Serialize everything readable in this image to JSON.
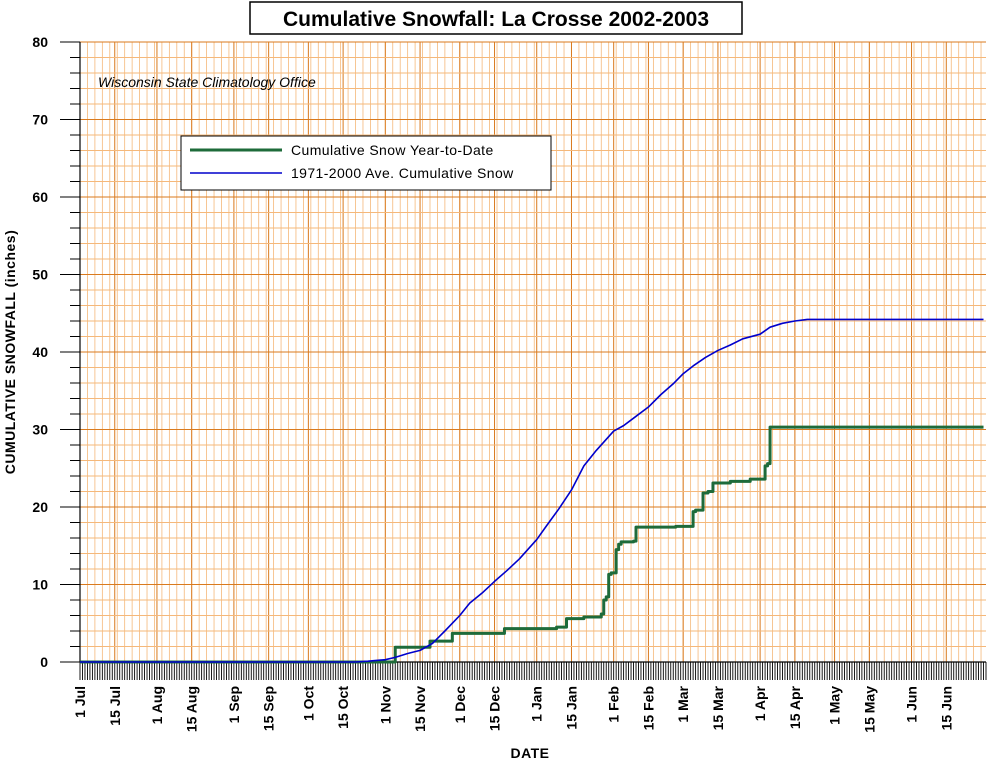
{
  "chart_data": {
    "type": "line",
    "title": "Cumulative Snowfall: La Crosse 2002-2003",
    "annotation": "Wisconsin State Climatology Office",
    "xlabel": "DATE",
    "ylabel": "CUMULATIVE SNOWFALL (inches)",
    "ylim": [
      0,
      80
    ],
    "y_ticks": [
      0,
      10,
      20,
      30,
      40,
      50,
      60,
      70,
      80
    ],
    "x_range": [
      "2002-07-01",
      "2003-06-30"
    ],
    "x_tick_labels": [
      {
        "date": "2002-07-01",
        "label": "1 Jul"
      },
      {
        "date": "2002-07-15",
        "label": "15 Jul"
      },
      {
        "date": "2002-08-01",
        "label": "1 Aug"
      },
      {
        "date": "2002-08-15",
        "label": "15 Aug"
      },
      {
        "date": "2002-09-01",
        "label": "1 Sep"
      },
      {
        "date": "2002-09-15",
        "label": "15 Sep"
      },
      {
        "date": "2002-10-01",
        "label": "1 Oct"
      },
      {
        "date": "2002-10-15",
        "label": "15 Oct"
      },
      {
        "date": "2002-11-01",
        "label": "1 Nov"
      },
      {
        "date": "2002-11-15",
        "label": "15 Nov"
      },
      {
        "date": "2002-12-01",
        "label": "1 Dec"
      },
      {
        "date": "2002-12-15",
        "label": "15 Dec"
      },
      {
        "date": "2003-01-01",
        "label": "1 Jan"
      },
      {
        "date": "2003-01-15",
        "label": "15 Jan"
      },
      {
        "date": "2003-02-01",
        "label": "1 Feb"
      },
      {
        "date": "2003-02-15",
        "label": "15 Feb"
      },
      {
        "date": "2003-03-01",
        "label": "1 Mar"
      },
      {
        "date": "2003-03-15",
        "label": "15 Mar"
      },
      {
        "date": "2003-04-01",
        "label": "1 Apr"
      },
      {
        "date": "2003-04-15",
        "label": "15 Apr"
      },
      {
        "date": "2003-05-01",
        "label": "1 May"
      },
      {
        "date": "2003-05-15",
        "label": "15 May"
      },
      {
        "date": "2003-06-01",
        "label": "1 Jun"
      },
      {
        "date": "2003-06-15",
        "label": "15 Jun"
      }
    ],
    "grid": true,
    "legend_position": "top-left",
    "series": [
      {
        "name": "Cumulative Snow Year-to-Date",
        "color": "#1e6b3a",
        "interpolation": "step",
        "points": [
          [
            "2002-07-01",
            0
          ],
          [
            "2002-11-04",
            0
          ],
          [
            "2002-11-05",
            1.9
          ],
          [
            "2002-11-18",
            1.9
          ],
          [
            "2002-11-19",
            2.7
          ],
          [
            "2002-11-27",
            2.7
          ],
          [
            "2002-11-28",
            3.7
          ],
          [
            "2002-12-18",
            3.7
          ],
          [
            "2002-12-19",
            4.3
          ],
          [
            "2003-01-08",
            4.3
          ],
          [
            "2003-01-09",
            4.5
          ],
          [
            "2003-01-12",
            4.5
          ],
          [
            "2003-01-13",
            5.6
          ],
          [
            "2003-01-19",
            5.6
          ],
          [
            "2003-01-20",
            5.8
          ],
          [
            "2003-01-26",
            5.8
          ],
          [
            "2003-01-27",
            6.2
          ],
          [
            "2003-01-28",
            8.0
          ],
          [
            "2003-01-29",
            8.4
          ],
          [
            "2003-01-30",
            11.3
          ],
          [
            "2003-01-31",
            11.5
          ],
          [
            "2003-02-02",
            14.5
          ],
          [
            "2003-02-03",
            15.2
          ],
          [
            "2003-02-04",
            15.5
          ],
          [
            "2003-02-09",
            15.6
          ],
          [
            "2003-02-10",
            17.4
          ],
          [
            "2003-02-26",
            17.5
          ],
          [
            "2003-03-04",
            17.5
          ],
          [
            "2003-03-05",
            19.4
          ],
          [
            "2003-03-06",
            19.6
          ],
          [
            "2003-03-08",
            19.6
          ],
          [
            "2003-03-09",
            21.8
          ],
          [
            "2003-03-11",
            22.0
          ],
          [
            "2003-03-13",
            23.1
          ],
          [
            "2003-03-20",
            23.3
          ],
          [
            "2003-03-28",
            23.6
          ],
          [
            "2003-04-02",
            23.6
          ],
          [
            "2003-04-03",
            25.3
          ],
          [
            "2003-04-04",
            25.6
          ],
          [
            "2003-04-05",
            30.3
          ],
          [
            "2003-06-30",
            30.3
          ]
        ]
      },
      {
        "name": "1971-2000 Ave. Cumulative Snow",
        "color": "#0000cc",
        "interpolation": "linear",
        "points": [
          [
            "2002-07-01",
            0
          ],
          [
            "2002-10-20",
            0
          ],
          [
            "2002-10-25",
            0.1
          ],
          [
            "2002-11-01",
            0.3
          ],
          [
            "2002-11-05",
            0.6
          ],
          [
            "2002-11-10",
            1.1
          ],
          [
            "2002-11-15",
            1.5
          ],
          [
            "2002-11-20",
            2.4
          ],
          [
            "2002-11-25",
            4.0
          ],
          [
            "2002-12-01",
            6.0
          ],
          [
            "2002-12-05",
            7.6
          ],
          [
            "2002-12-10",
            8.9
          ],
          [
            "2002-12-15",
            10.4
          ],
          [
            "2002-12-20",
            11.8
          ],
          [
            "2002-12-25",
            13.3
          ],
          [
            "2003-01-01",
            15.8
          ],
          [
            "2003-01-05",
            17.6
          ],
          [
            "2003-01-10",
            19.8
          ],
          [
            "2003-01-15",
            22.2
          ],
          [
            "2003-01-20",
            25.3
          ],
          [
            "2003-01-25",
            27.3
          ],
          [
            "2003-02-01",
            29.8
          ],
          [
            "2003-02-05",
            30.5
          ],
          [
            "2003-02-10",
            31.7
          ],
          [
            "2003-02-15",
            32.9
          ],
          [
            "2003-02-20",
            34.5
          ],
          [
            "2003-02-25",
            35.9
          ],
          [
            "2003-03-01",
            37.2
          ],
          [
            "2003-03-05",
            38.2
          ],
          [
            "2003-03-10",
            39.3
          ],
          [
            "2003-03-15",
            40.2
          ],
          [
            "2003-03-20",
            40.9
          ],
          [
            "2003-03-25",
            41.7
          ],
          [
            "2003-04-01",
            42.3
          ],
          [
            "2003-04-05",
            43.2
          ],
          [
            "2003-04-10",
            43.7
          ],
          [
            "2003-04-15",
            44.0
          ],
          [
            "2003-04-20",
            44.2
          ],
          [
            "2003-06-30",
            44.2
          ]
        ]
      }
    ]
  },
  "colors": {
    "plot_background": "#ffffff",
    "minor_grid": "#f5b87a",
    "major_grid": "#d97a1e",
    "axis": "#000000"
  }
}
